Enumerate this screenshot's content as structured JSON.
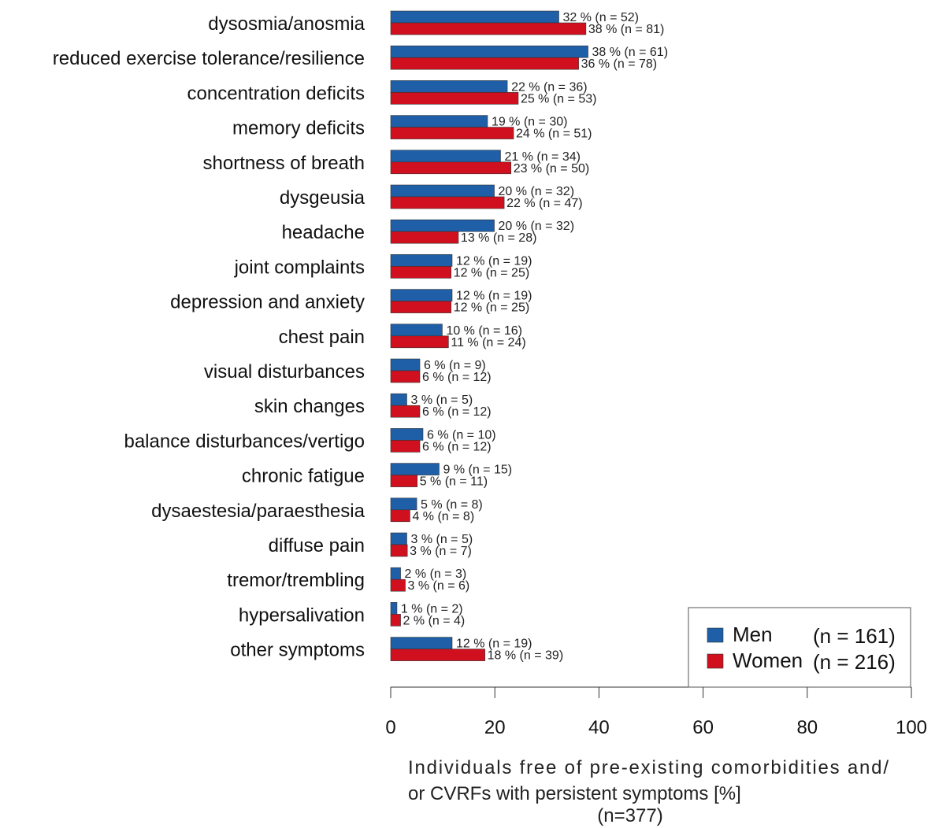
{
  "chart_data": {
    "type": "bar",
    "orientation": "horizontal",
    "categories": [
      "dysosmia/anosmia",
      "reduced exercise tolerance/resilience",
      "concentration deficits",
      "memory deficits",
      "shortness of breath",
      "dysgeusia",
      "headache",
      "joint complaints",
      "depression and anxiety",
      "chest pain",
      "visual disturbances",
      "skin changes",
      "balance disturbances/vertigo",
      "chronic fatigue",
      "dysaestesia/paraesthesia",
      "diffuse pain",
      "tremor/trembling",
      "hypersalivation",
      "other symptoms"
    ],
    "series": [
      {
        "name": "Men",
        "legend_n": "(n = 161)",
        "color": "#1f5fa8",
        "values": [
          32.3,
          37.9,
          22.4,
          18.6,
          21.1,
          19.9,
          19.9,
          11.8,
          11.8,
          9.9,
          5.6,
          3.1,
          6.2,
          9.3,
          5.0,
          3.1,
          1.9,
          1.2,
          11.8
        ],
        "labels": [
          "32 % (n = 52)",
          "38 % (n = 61)",
          "22 % (n = 36)",
          "19 % (n = 30)",
          "21 % (n = 34)",
          "20 % (n = 32)",
          "20 % (n = 32)",
          "12 % (n = 19)",
          "12 % (n = 19)",
          "10 % (n = 16)",
          "6 % (n = 9)",
          "3 % (n = 5)",
          "6 % (n = 10)",
          "9 % (n = 15)",
          "5 % (n = 8)",
          "3 % (n = 5)",
          "2 % (n = 3)",
          "1 % (n = 2)",
          "12 % (n = 19)"
        ]
      },
      {
        "name": "Women",
        "legend_n": "(n = 216)",
        "color": "#d0101e",
        "values": [
          37.5,
          36.1,
          24.5,
          23.6,
          23.1,
          21.8,
          13.0,
          11.6,
          11.6,
          11.1,
          5.6,
          5.6,
          5.6,
          5.1,
          3.7,
          3.2,
          2.8,
          1.9,
          18.1
        ],
        "labels": [
          "38 % (n = 81)",
          "36 % (n = 78)",
          "25 % (n = 53)",
          "24 % (n = 51)",
          "23 % (n = 50)",
          "22 % (n = 47)",
          "13 % (n = 28)",
          "12 % (n = 25)",
          "12 % (n = 25)",
          "11 % (n = 24)",
          "6 % (n = 12)",
          "6 % (n = 12)",
          "6 % (n = 12)",
          "5 % (n = 11)",
          "4 % (n = 8)",
          "3 % (n = 7)",
          "3 % (n = 6)",
          "2 % (n = 4)",
          "18 % (n = 39)"
        ]
      }
    ],
    "xlim": [
      0,
      100
    ],
    "xticks": [
      "0",
      "20",
      "40",
      "60",
      "80",
      "100"
    ],
    "xlabel_lines": [
      "Individuals free of pre-existing comorbidities and/",
      "or CVRFs with persistent symptoms [%]",
      "(n=377)"
    ],
    "legend_position": "bottom-right",
    "grid": false
  }
}
